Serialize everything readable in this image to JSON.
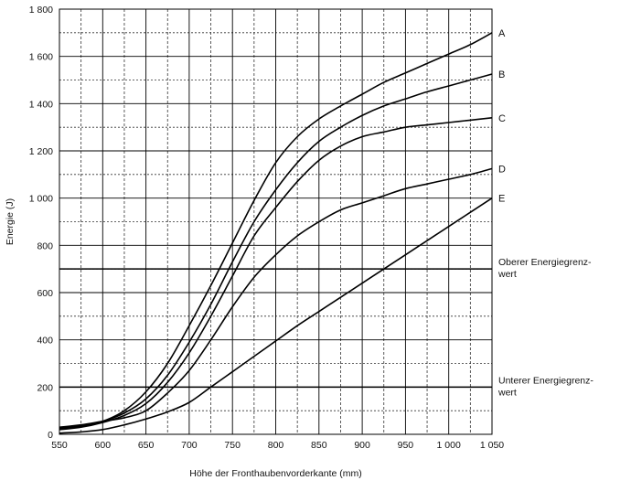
{
  "chart_data": {
    "type": "line",
    "xlabel": "Höhe der Fronthaubenvorderkante (mm)",
    "ylabel": "Energie (J)",
    "xlim": [
      550,
      1050
    ],
    "ylim": [
      0,
      1800
    ],
    "x_major_ticks": [
      550,
      600,
      650,
      700,
      750,
      800,
      850,
      900,
      950,
      1000,
      1050
    ],
    "x_tick_labels": [
      "550",
      "600",
      "650",
      "700",
      "750",
      "800",
      "850",
      "900",
      "950",
      "1 000",
      "1 050"
    ],
    "x_minor_ticks": [
      575,
      625,
      675,
      725,
      775,
      825,
      875,
      925,
      975,
      1025
    ],
    "y_major_ticks": [
      0,
      200,
      400,
      600,
      800,
      1000,
      1200,
      1400,
      1600,
      1800
    ],
    "y_tick_labels": [
      "0",
      "200",
      "400",
      "600",
      "800",
      "1 000",
      "1 200",
      "1 400",
      "1 600",
      "1 800"
    ],
    "y_minor_ticks": [
      100,
      300,
      500,
      700,
      900,
      1100,
      1300,
      1500,
      1700
    ],
    "grid": true,
    "series": [
      {
        "name": "A",
        "x": [
          550,
          575,
          600,
          625,
          650,
          675,
          700,
          725,
          750,
          775,
          800,
          825,
          850,
          875,
          900,
          925,
          950,
          975,
          1000,
          1025,
          1050
        ],
        "values": [
          25,
          35,
          55,
          100,
          180,
          300,
          460,
          630,
          810,
          990,
          1150,
          1260,
          1335,
          1390,
          1440,
          1490,
          1530,
          1570,
          1610,
          1650,
          1700
        ]
      },
      {
        "name": "B",
        "x": [
          550,
          575,
          600,
          625,
          650,
          675,
          700,
          725,
          750,
          775,
          800,
          825,
          850,
          875,
          900,
          925,
          950,
          975,
          1000,
          1025,
          1050
        ],
        "values": [
          25,
          35,
          55,
          90,
          150,
          250,
          390,
          550,
          730,
          900,
          1035,
          1150,
          1240,
          1300,
          1350,
          1390,
          1420,
          1450,
          1475,
          1500,
          1525
        ]
      },
      {
        "name": "C",
        "x": [
          550,
          575,
          600,
          625,
          650,
          675,
          700,
          725,
          750,
          775,
          800,
          825,
          850,
          875,
          900,
          925,
          950,
          975,
          1000,
          1025,
          1050
        ],
        "values": [
          20,
          30,
          50,
          80,
          130,
          220,
          345,
          500,
          670,
          840,
          960,
          1070,
          1160,
          1220,
          1260,
          1280,
          1300,
          1310,
          1320,
          1330,
          1340
        ]
      },
      {
        "name": "D",
        "x": [
          550,
          575,
          600,
          625,
          650,
          675,
          700,
          725,
          750,
          775,
          800,
          825,
          850,
          875,
          900,
          925,
          950,
          975,
          1000,
          1025,
          1050
        ],
        "values": [
          30,
          40,
          55,
          70,
          100,
          175,
          270,
          400,
          540,
          665,
          760,
          840,
          900,
          950,
          980,
          1010,
          1040,
          1060,
          1080,
          1100,
          1125
        ]
      },
      {
        "name": "E",
        "x": [
          550,
          575,
          600,
          625,
          650,
          675,
          700,
          725,
          750,
          775,
          800,
          825,
          850,
          875,
          900,
          925,
          950,
          975,
          1000,
          1025,
          1050
        ],
        "values": [
          5,
          10,
          20,
          40,
          65,
          95,
          135,
          200,
          265,
          330,
          395,
          460,
          520,
          580,
          640,
          700,
          760,
          820,
          880,
          940,
          1000
        ]
      }
    ],
    "reference_lines": [
      {
        "y": 700,
        "label_line1": "Oberer Energiegrenz-",
        "label_line2": "wert"
      },
      {
        "y": 200,
        "label_line1": "Unterer Energiegrenz-",
        "label_line2": "wert"
      }
    ],
    "line_color": "#000000"
  }
}
